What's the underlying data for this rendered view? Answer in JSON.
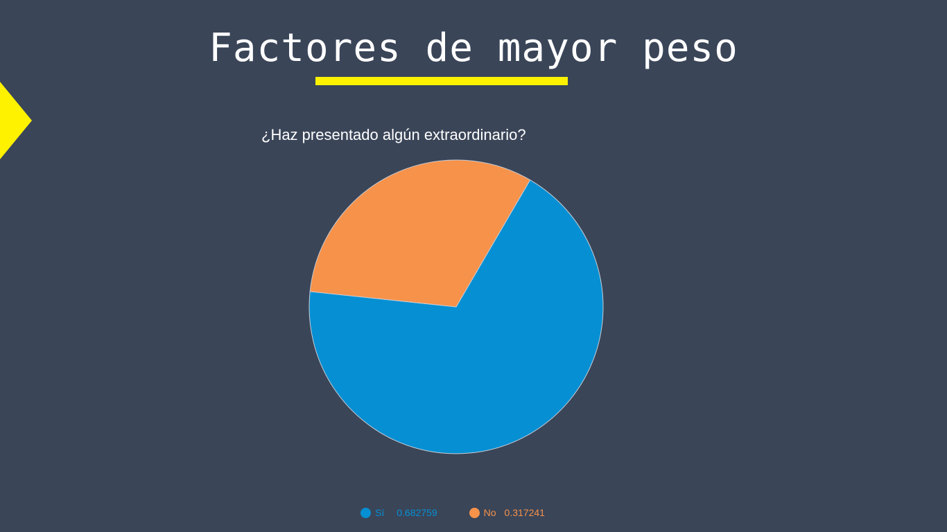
{
  "slide": {
    "title": "Factores de mayor peso"
  },
  "colors": {
    "background": "#3a4558",
    "accent_yellow": "#fff200",
    "si": "#068fd3",
    "no": "#f6924a"
  },
  "chart_data": {
    "type": "pie",
    "title": "¿Haz presentado algún extraordinario?",
    "legend_position": "bottom",
    "slices": [
      {
        "label": "Sí",
        "value": 0.682759,
        "value_text": "0.682759",
        "color": "#068fd3"
      },
      {
        "label": "No",
        "value": 0.317241,
        "value_text": "0.317241",
        "color": "#f6924a"
      }
    ]
  }
}
